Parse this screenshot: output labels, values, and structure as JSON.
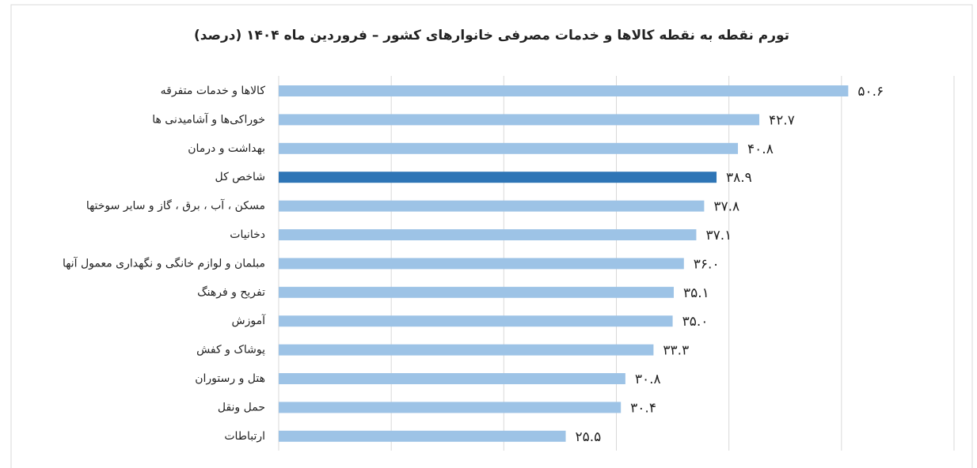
{
  "chart_data": {
    "type": "hbar",
    "title": "تورم نقطه به نقطه کالاها و خدمات مصرفی خانوارهای کشور – فروردین ماه ۱۴۰۴ (درصد)",
    "categories": [
      "کالاها و خدمات متفرقه",
      "خوراکی‌ها و آشامیدنی ها",
      "بهداشت و درمان",
      "شاخص کل",
      "مسکن ، آب ، برق ، گاز و سایر سوختها",
      "دخانیات",
      "مبلمان و لوازم خانگی و نگهداری معمول آنها",
      "تفریح و فرهنگ",
      "آموزش",
      "پوشاک و کفش",
      "هتل و رستوران",
      "حمل ونقل",
      "ارتباطات"
    ],
    "values": [
      50.6,
      42.7,
      40.8,
      38.9,
      37.8,
      37.1,
      36.0,
      35.1,
      35.0,
      33.3,
      30.8,
      30.4,
      25.5
    ],
    "value_labels": [
      "۵۰.۶",
      "۴۲.۷",
      "۴۰.۸",
      "۳۸.۹",
      "۳۷.۸",
      "۳۷.۱",
      "۳۶.۰",
      "۳۵.۱",
      "۳۵.۰",
      "۳۳.۳",
      "۳۰.۸",
      "۳۰.۴",
      "۲۵.۵"
    ],
    "colors": [
      "#9dc3e6",
      "#9dc3e6",
      "#9dc3e6",
      "#2e75b6",
      "#9dc3e6",
      "#9dc3e6",
      "#9dc3e6",
      "#9dc3e6",
      "#9dc3e6",
      "#9dc3e6",
      "#9dc3e6",
      "#9dc3e6",
      "#9dc3e6"
    ],
    "xlim": [
      0,
      60
    ],
    "xticks": [
      0,
      10,
      20,
      30,
      40,
      50,
      60
    ],
    "grid": true
  }
}
